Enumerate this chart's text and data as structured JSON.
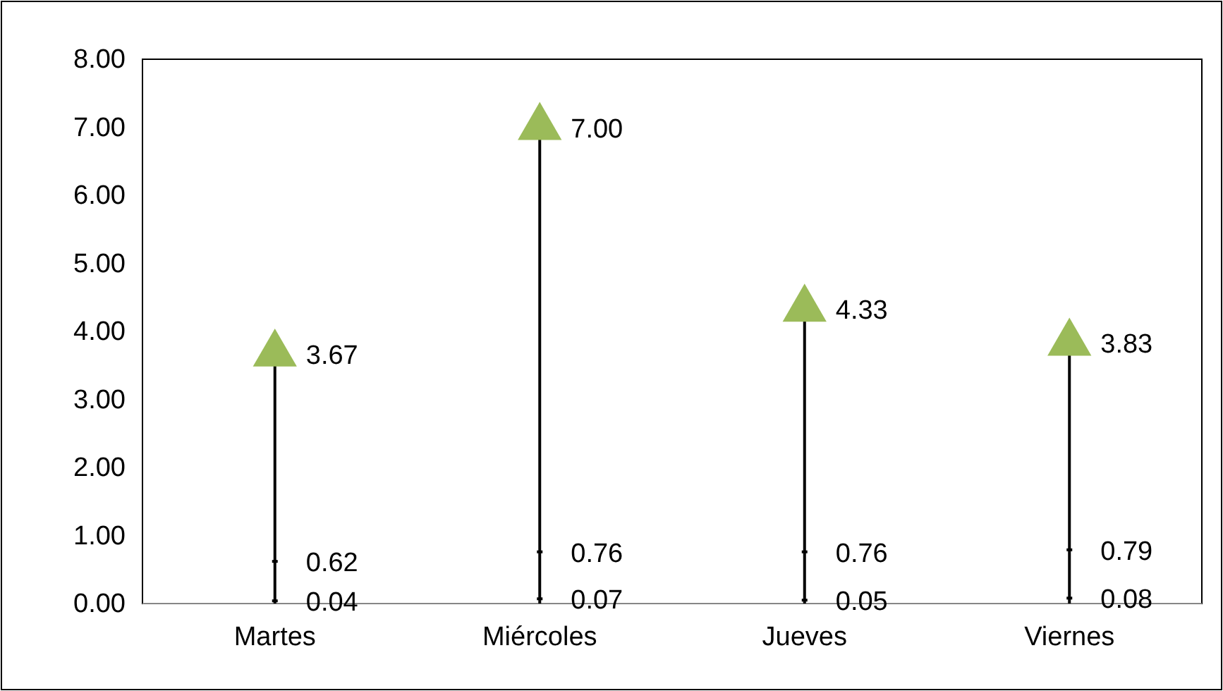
{
  "chart_data": {
    "type": "lollipop",
    "categories": [
      "Martes",
      "Miércoles",
      "Jueves",
      "Viernes"
    ],
    "series": [
      {
        "color": "#9bbb59",
        "marker": "triangle",
        "values": [
          3.67,
          7.0,
          4.33,
          3.83
        ],
        "value_labels": [
          "3.67",
          "7.00",
          "4.33",
          "3.83"
        ]
      },
      {
        "type": "scatter",
        "color": "#000000",
        "marker": "square",
        "values": [
          0.62,
          0.76,
          0.76,
          0.79
        ],
        "value_labels": [
          "0.62",
          "0.76",
          "0.76",
          "0.79"
        ]
      },
      {
        "type": "scatter",
        "color": "#000000",
        "marker": "square",
        "values": [
          0.04,
          0.07,
          0.05,
          0.08
        ],
        "value_labels": [
          "0.04",
          "0.07",
          "0.05",
          "0.08"
        ]
      }
    ],
    "ylim": [
      0,
      8
    ],
    "yticks": [
      {
        "value": 0,
        "label": "0.00"
      },
      {
        "value": 1,
        "label": "1.00"
      },
      {
        "value": 2,
        "label": "2.00"
      },
      {
        "value": 3,
        "label": "3.00"
      },
      {
        "value": 4,
        "label": "4.00"
      },
      {
        "value": 5,
        "label": "5.00"
      },
      {
        "value": 6,
        "label": "6.00"
      },
      {
        "value": 7,
        "label": "7.00"
      },
      {
        "value": 8,
        "label": "8.00"
      }
    ]
  }
}
